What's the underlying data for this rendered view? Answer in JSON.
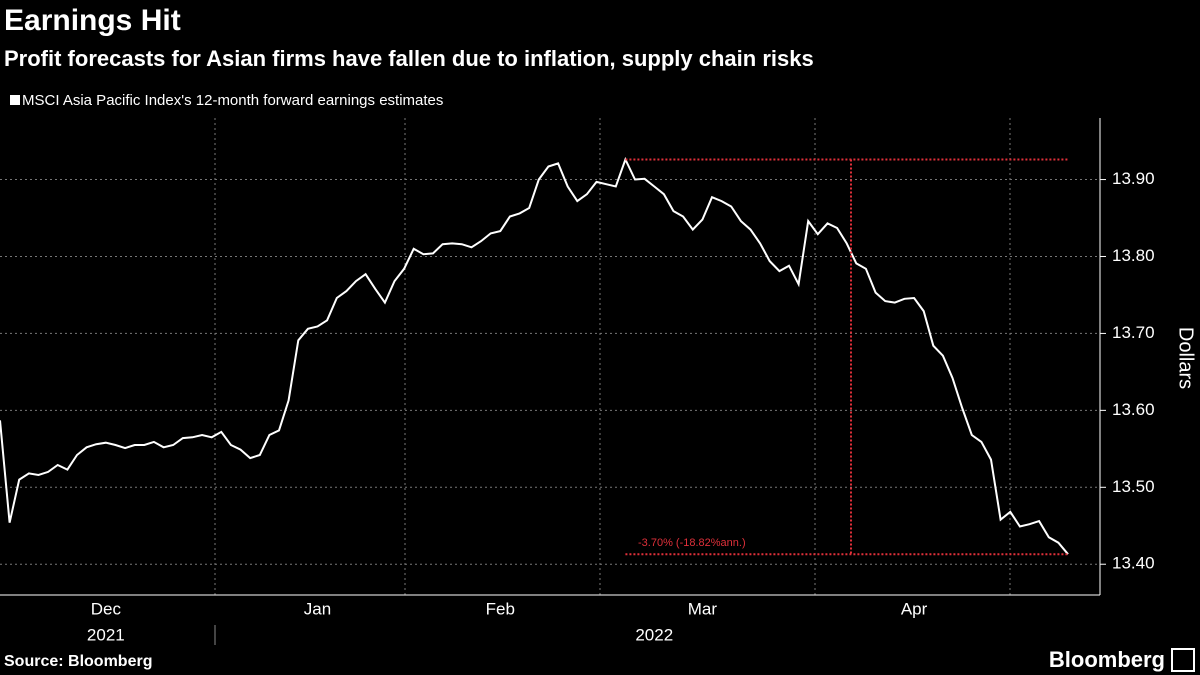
{
  "chart_data": {
    "type": "line",
    "title": "Earnings Hit",
    "subtitle": "Profit forecasts for Asian firms have fallen due to inflation, supply chain risks",
    "y_label": "Dollars",
    "annotation": "-3.70% (-18.82%ann.)",
    "source": "Source: Bloomberg",
    "brand": "Bloomberg",
    "grid": true,
    "ylim": [
      13.36,
      13.98
    ],
    "yticks": [
      {
        "value": 13.4,
        "label": "13.40"
      },
      {
        "value": 13.5,
        "label": "13.50"
      },
      {
        "value": 13.6,
        "label": "13.60"
      },
      {
        "value": 13.7,
        "label": "13.70"
      },
      {
        "value": 13.8,
        "label": "13.80"
      },
      {
        "value": 13.9,
        "label": "13.90"
      }
    ],
    "categories": [
      null,
      null,
      null,
      null,
      null,
      null,
      null,
      null,
      null,
      null,
      null,
      "Dec",
      null,
      null,
      null,
      null,
      null,
      null,
      null,
      null,
      null,
      null,
      null,
      null,
      null,
      null,
      null,
      null,
      null,
      null,
      null,
      null,
      null,
      "Jan",
      null,
      null,
      null,
      null,
      null,
      null,
      null,
      null,
      null,
      null,
      null,
      null,
      null,
      null,
      null,
      null,
      null,
      null,
      "Feb",
      null,
      null,
      null,
      null,
      null,
      null,
      null,
      null,
      null,
      null,
      null,
      null,
      null,
      null,
      null,
      null,
      null,
      null,
      null,
      null,
      "Mar",
      null,
      null,
      null,
      null,
      null,
      null,
      null,
      null,
      null,
      null,
      null,
      null,
      null,
      null,
      null,
      null,
      null,
      null,
      null,
      null,
      null,
      "Apr",
      null,
      null,
      null,
      null,
      null,
      null,
      null,
      null,
      null,
      null,
      null,
      null,
      null,
      null,
      null,
      null
    ],
    "year_labels": [
      null,
      null,
      null,
      null,
      null,
      null,
      null,
      null,
      null,
      null,
      null,
      "2021",
      null,
      null,
      null,
      null,
      null,
      null,
      null,
      null,
      null,
      null,
      null,
      null,
      null,
      null,
      null,
      null,
      null,
      null,
      null,
      null,
      null,
      null,
      null,
      null,
      null,
      null,
      null,
      null,
      null,
      null,
      null,
      null,
      null,
      null,
      null,
      null,
      null,
      null,
      null,
      null,
      null,
      null,
      null,
      null,
      null,
      null,
      null,
      null,
      null,
      null,
      null,
      null,
      null,
      null,
      null,
      null,
      "2022",
      null,
      null,
      null,
      null,
      null,
      null,
      null,
      null,
      null,
      null,
      null,
      null,
      null,
      null,
      null,
      null,
      null,
      null,
      null,
      null,
      null,
      null,
      null,
      null,
      null,
      null,
      null,
      null,
      null,
      null,
      null,
      null,
      null,
      null,
      null,
      null,
      null,
      null,
      null,
      null,
      null,
      null,
      null
    ],
    "series": [
      {
        "name": "MSCI Asia Pacific Index's 12-month forward earnings estimates",
        "color": "#ffffff",
        "values": [
          13.587,
          13.454,
          13.51,
          13.518,
          13.516,
          13.52,
          13.529,
          13.523,
          13.542,
          13.552,
          13.556,
          13.558,
          13.555,
          13.551,
          13.555,
          13.555,
          13.559,
          13.552,
          13.555,
          13.564,
          13.565,
          13.568,
          13.565,
          13.572,
          13.555,
          13.549,
          13.538,
          13.542,
          13.568,
          13.574,
          13.613,
          13.691,
          13.706,
          13.709,
          13.717,
          13.746,
          13.755,
          13.768,
          13.777,
          13.758,
          13.74,
          13.768,
          13.784,
          13.81,
          13.803,
          13.804,
          13.816,
          13.817,
          13.816,
          13.812,
          13.82,
          13.83,
          13.833,
          13.852,
          13.856,
          13.863,
          13.9,
          13.917,
          13.921,
          13.891,
          13.872,
          13.881,
          13.897,
          13.894,
          13.891,
          13.926,
          13.9,
          13.901,
          13.891,
          13.881,
          13.859,
          13.852,
          13.835,
          13.848,
          13.877,
          13.872,
          13.865,
          13.846,
          13.835,
          13.817,
          13.794,
          13.781,
          13.788,
          13.764,
          13.846,
          13.829,
          13.843,
          13.837,
          13.817,
          13.791,
          13.784,
          13.753,
          13.742,
          13.74,
          13.745,
          13.746,
          13.729,
          13.684,
          13.671,
          13.642,
          13.603,
          13.568,
          13.559,
          13.536,
          13.458,
          13.468,
          13.449,
          13.452,
          13.456,
          13.435,
          13.428,
          13.413
        ]
      }
    ],
    "annotation_color": "#e0303a"
  }
}
